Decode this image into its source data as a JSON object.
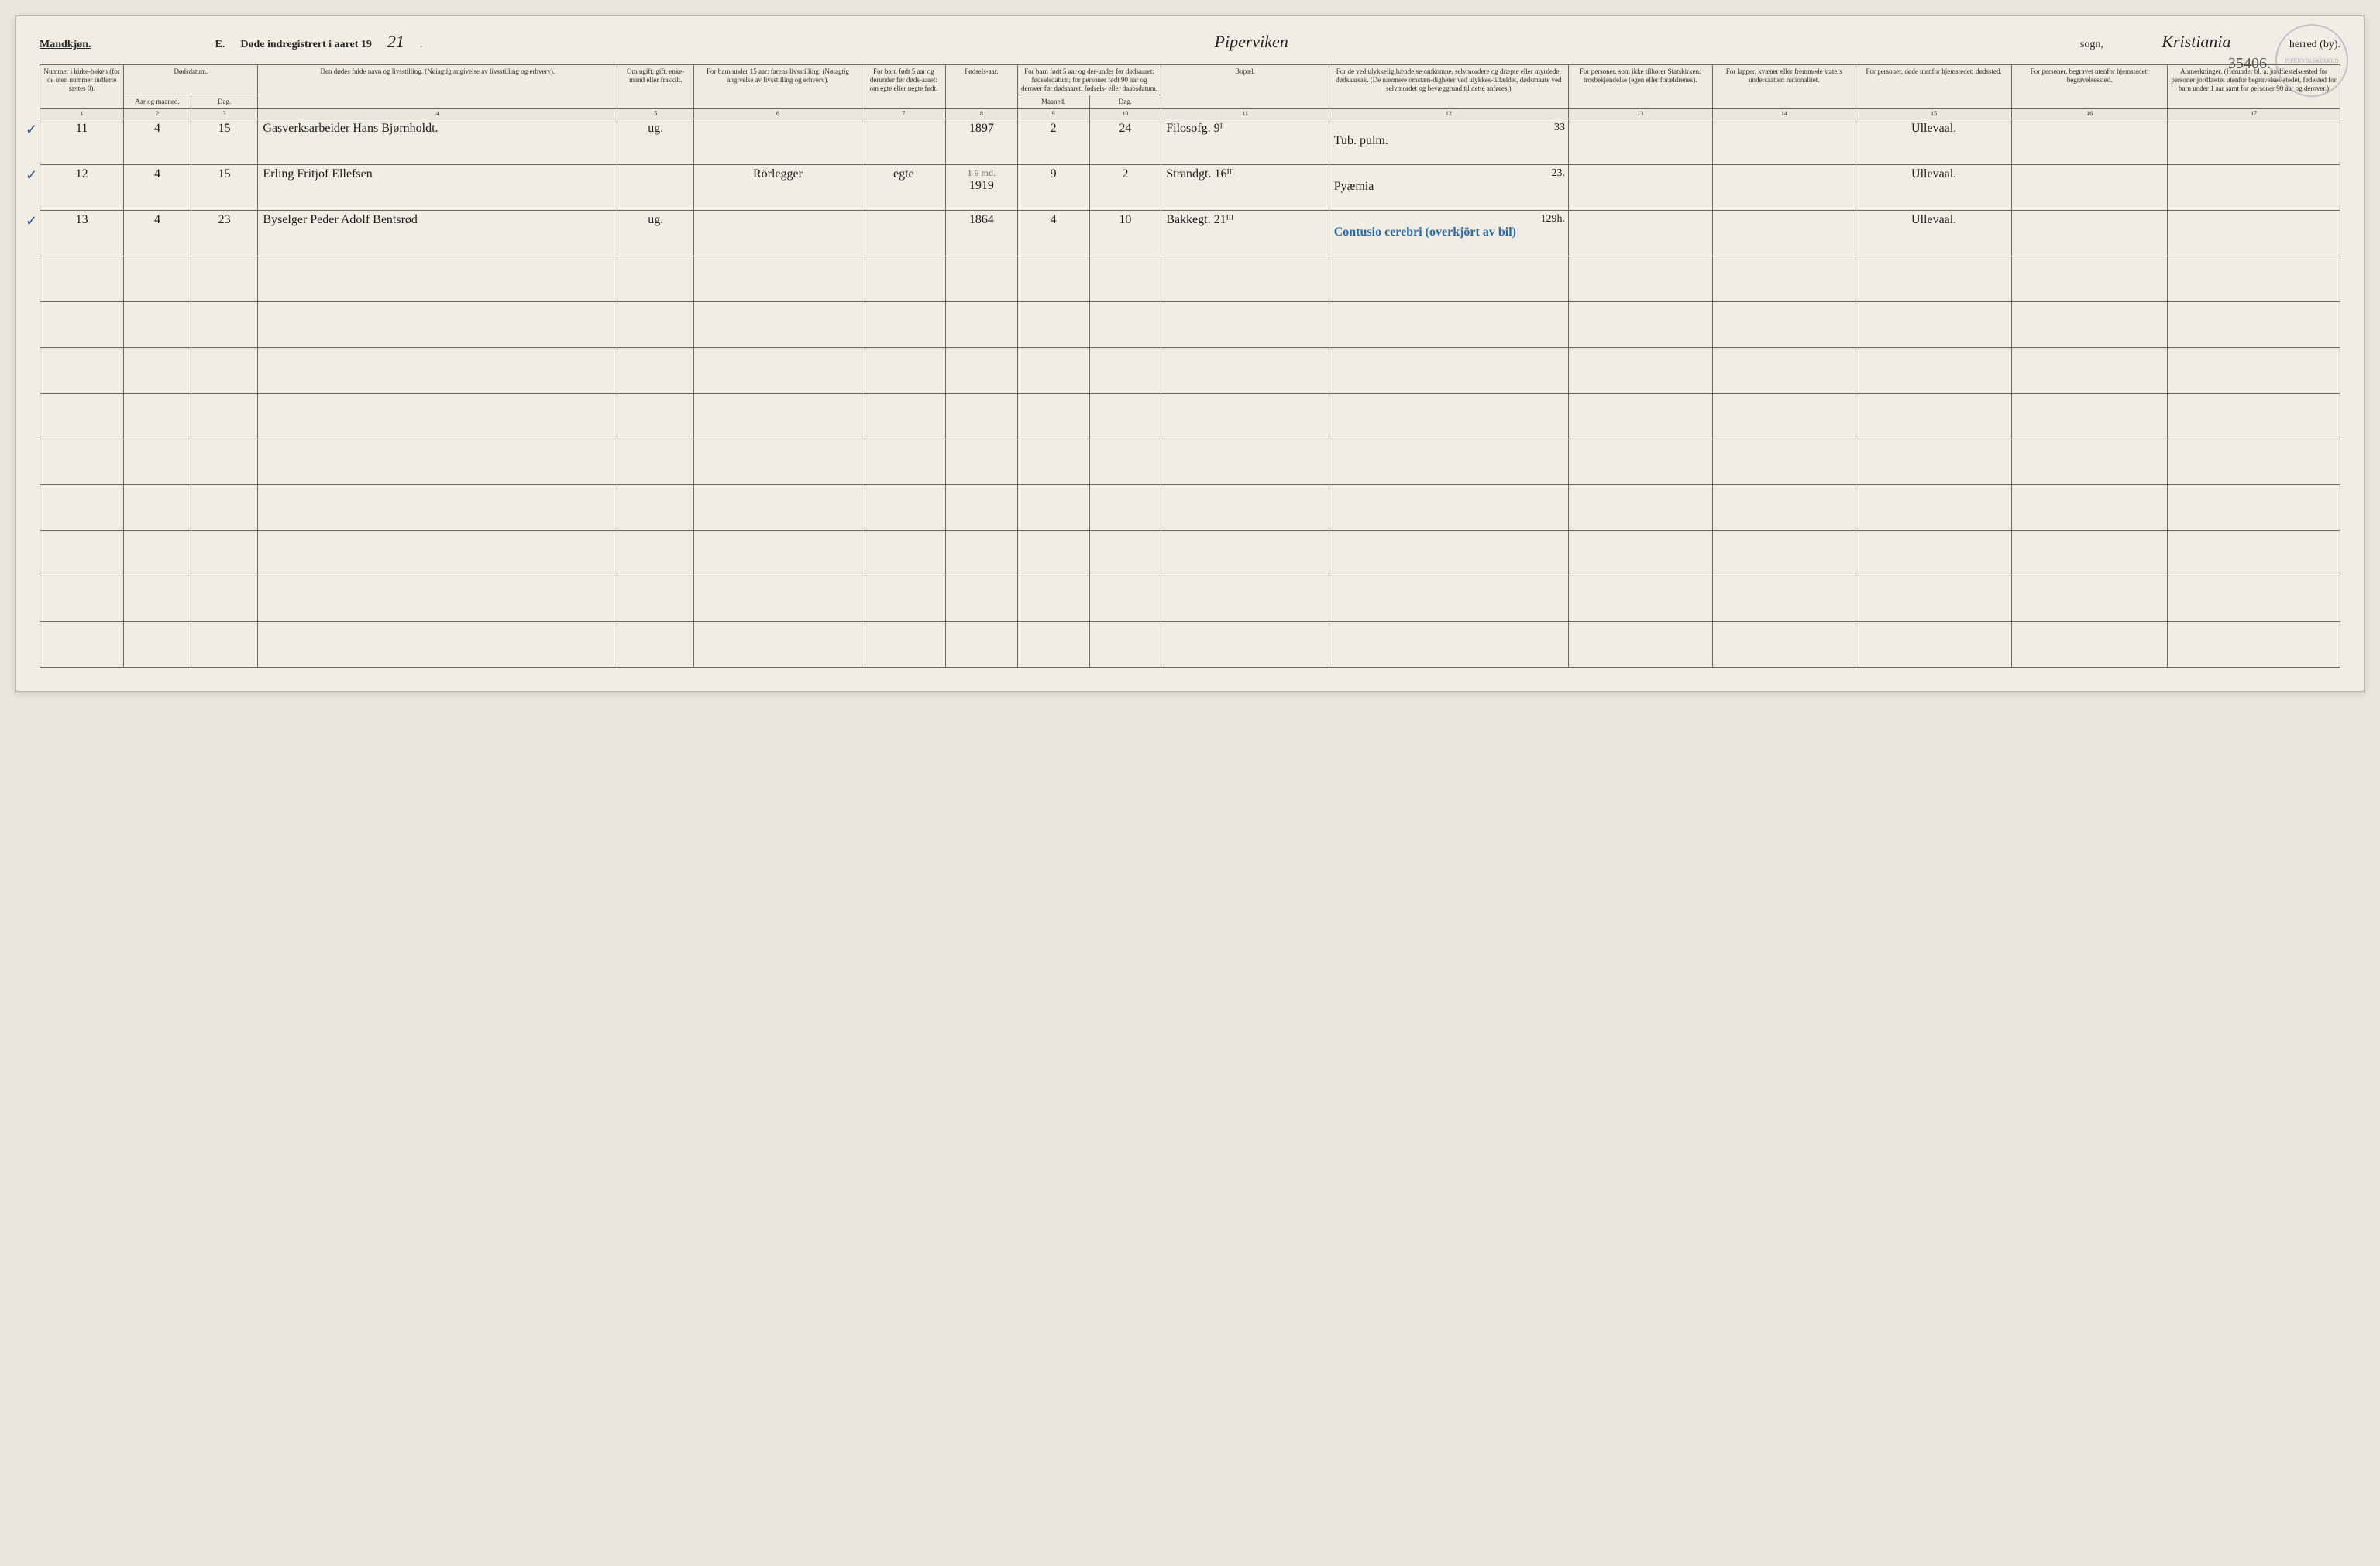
{
  "header": {
    "gender": "Mandkjøn.",
    "section": "E.",
    "title_prefix": "Døde indregistrert i aaret 19",
    "year_digits": "21",
    "sogn_label": "sogn,",
    "sogn_value": "Piperviken",
    "herred_label": "herred (by).",
    "herred_value": "Kristiania",
    "page_number": "35406."
  },
  "stamp_text": "PIPERVIKSKIRKEN",
  "columns": {
    "c1": "Nummer i kirke-bøken (for de uten nummer indførte sættes 0).",
    "c2a": "Dødsdatum.",
    "c2": "Aar og maaned.",
    "c3": "Dag.",
    "c4": "Den dødes fulde navn og livsstilling. (Nøiagtig angivelse av livsstilling og erhverv).",
    "c5": "Om ugift, gift, enke-mand eller fraskilt.",
    "c6": "For barn under 15 aar: farens livsstilling. (Nøiagtig angivelse av livsstilling og erhverv).",
    "c7": "For barn født 5 aar og derunder før døds-aaret: om egte eller uegte født.",
    "c8": "Fødsels-aar.",
    "c9a": "For barn født 5 aar og der-under før dødsaaret: fødselsdatum; for personer født 90 aar og derover før dødsaaret: fødsels- eller daabsdatum.",
    "c9": "Maaned.",
    "c10": "Dag.",
    "c11": "Bopæl.",
    "c12": "For de ved ulykkelig hændelse omkomne, selvmordere og dræpte eller myrdede: dødsaarsak. (De nærmere omstæn-digheter ved ulykkes-tilfældet, dødsmaate ved selvmordet og bevæggrund til dette anføres.)",
    "c13": "For personer, som ikke tilhører Statskirken: trosbekjendelse (egen eller forældrenes).",
    "c14": "For lapper, kvæner eller fremmede staters undersaatter: nationalitet.",
    "c15": "For personer, døde utenfor hjemstedet: dødssted.",
    "c16": "For personer, begravet utenfor hjemstedet: begravelsessted.",
    "c17": "Anmerkninger. (Herunder bl. a. jordfæstelsessted for personer jordfæstet utenfor begravelses-stedet, fødested for barn under 1 aar samt for personer 90 aar og derover.)"
  },
  "colnums": [
    "1",
    "2",
    "3",
    "4",
    "5",
    "6",
    "7",
    "8",
    "9",
    "10",
    "11",
    "12",
    "13",
    "14",
    "15",
    "16",
    "17"
  ],
  "rows": [
    {
      "check": "✓",
      "num": "11",
      "month": "4",
      "day": "15",
      "name": "Gasverksarbeider Hans Bjørnholdt.",
      "marital": "ug.",
      "parent": "",
      "legit": "",
      "birth_year": "1897",
      "birth_month": "2",
      "birth_day": "24",
      "residence": "Filosofg. 9ᴵ",
      "cause": "Tub. pulm.",
      "cause_num": "33",
      "faith": "",
      "nation": "",
      "deathplace": "Ullevaal.",
      "burial": "",
      "remarks": ""
    },
    {
      "check": "✓",
      "num": "12",
      "month": "4",
      "day": "15",
      "name": "Erling Fritjof Ellefsen",
      "marital": "",
      "parent": "Rörlegger",
      "legit": "egte",
      "birth_year": "1919",
      "birth_note": "1 9 md.",
      "birth_month": "9",
      "birth_day": "2",
      "residence": "Strandgt. 16ᴵᴵᴵ",
      "cause": "Pyæmia",
      "cause_num": "23.",
      "faith": "",
      "nation": "",
      "deathplace": "Ullevaal.",
      "burial": "",
      "remarks": ""
    },
    {
      "check": "✓",
      "num": "13",
      "month": "4",
      "day": "23",
      "name": "Byselger Peder Adolf Bentsrød",
      "marital": "ug.",
      "parent": "",
      "legit": "",
      "birth_year": "1864",
      "birth_month": "4",
      "birth_day": "10",
      "residence": "Bakkegt. 21ᴵᴵᴵ",
      "cause": "Contusio cerebri (overkjört av bil)",
      "cause_num": "129h.",
      "faith": "",
      "nation": "",
      "deathplace": "Ullevaal.",
      "burial": "",
      "remarks": ""
    }
  ],
  "empty_rows": 9,
  "styling": {
    "page_bg": "#f0eee4",
    "border_color": "#6a685e",
    "handwriting_color": "#1a1a1a",
    "blue_pencil": "#2a6aaa",
    "stamp_color": "#a88bb5",
    "header_font_size": 14,
    "cell_font_size": 16,
    "header_cell_font_size": 9
  }
}
